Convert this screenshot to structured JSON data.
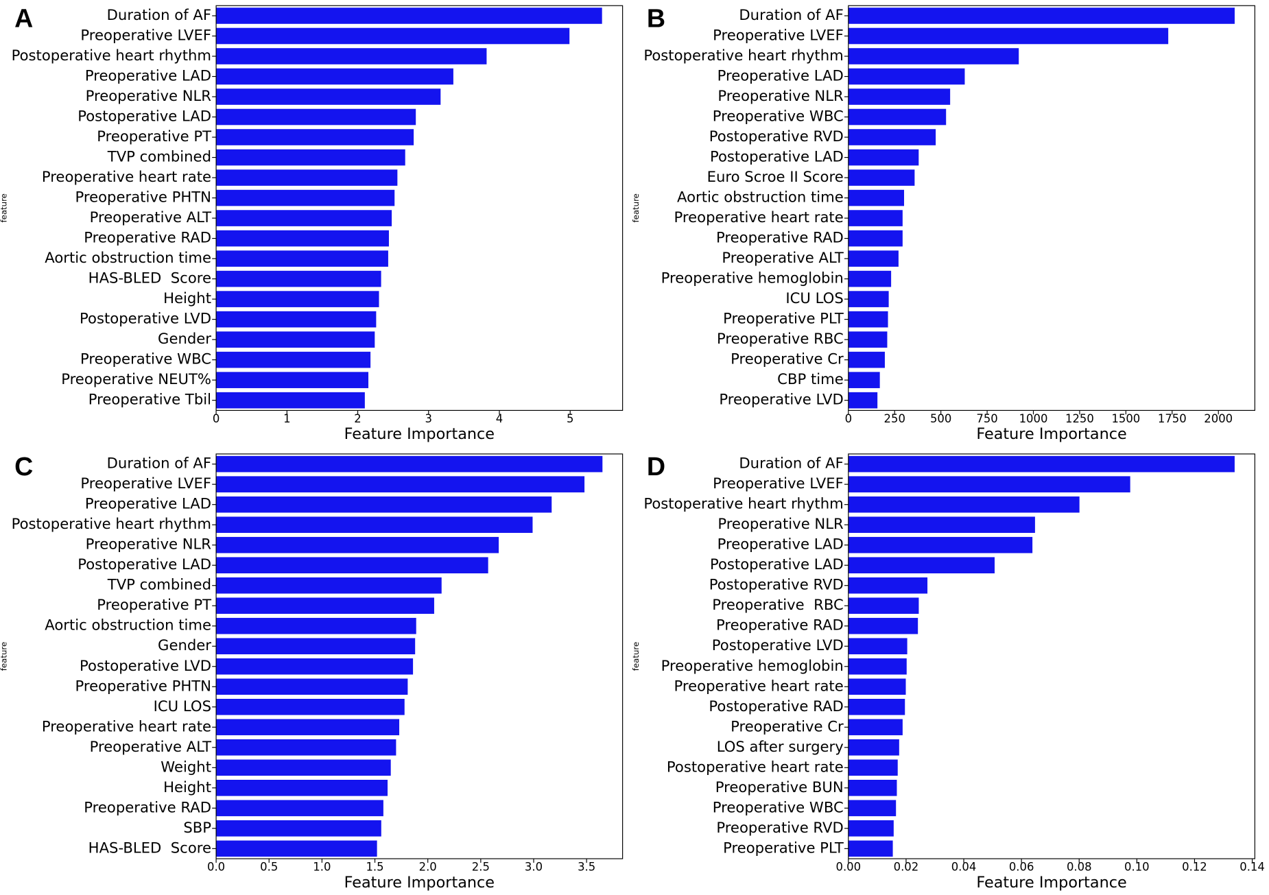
{
  "chart_data": [
    {
      "type": "bar",
      "orientation": "horizontal",
      "panel_label": "A",
      "ylabel": "feature",
      "xlabel": "Feature Importance",
      "color": "#1414ef",
      "categories": [
        "Duration of AF",
        "Preoperative LVEF",
        "Postoperative heart rhythm",
        "Preoperative LAD",
        "Preoperative NLR",
        "Postoperative LAD",
        "Preoperative PT",
        "TVP combined",
        "Preoperative heart rate",
        "Preoperative PHTN",
        "Preoperative ALT",
        "Preoperative RAD",
        "Aortic obstruction time",
        "HAS-BLED  Score",
        "Height",
        "Postoperative LVD",
        "Gender",
        "Preoperative WBC",
        "Preoperative NEUT%",
        "Preoperative Tbil"
      ],
      "values": [
        5.45,
        4.99,
        3.82,
        3.35,
        3.17,
        2.82,
        2.79,
        2.67,
        2.56,
        2.52,
        2.48,
        2.44,
        2.43,
        2.33,
        2.3,
        2.26,
        2.24,
        2.18,
        2.15,
        2.1
      ],
      "xlim": [
        0,
        5.74
      ],
      "xticks": [
        0,
        1,
        2,
        3,
        4,
        5
      ]
    },
    {
      "type": "bar",
      "orientation": "horizontal",
      "panel_label": "B",
      "ylabel": "feature",
      "xlabel": "Feature Importance",
      "color": "#1414ef",
      "categories": [
        "Duration of AF",
        "Preoperative LVEF",
        "Postoperative heart rhythm",
        "Preoperative LAD",
        "Preoperative NLR",
        "Preoperative WBC",
        "Postoperative RVD",
        "Postoperative LAD",
        "Euro Scroe II Score",
        "Aortic obstruction time",
        "Preoperative heart rate",
        "Preoperative RAD",
        "Preoperative ALT",
        "Preoperative hemoglobin",
        "ICU LOS",
        "Preoperative PLT",
        "Preoperative RBC",
        "Preoperative Cr",
        "CBP time",
        "Preoperative LVD"
      ],
      "values": [
        2088,
        1729,
        921,
        629,
        550,
        528,
        472,
        380,
        358,
        301,
        293,
        293,
        271,
        231,
        218,
        214,
        210,
        197,
        170,
        157
      ],
      "xlim": [
        0,
        2197
      ],
      "xticks": [
        0,
        250,
        500,
        750,
        1000,
        1250,
        1500,
        1750,
        2000
      ]
    },
    {
      "type": "bar",
      "orientation": "horizontal",
      "panel_label": "C",
      "ylabel": "feature",
      "xlabel": "Feature Importance",
      "color": "#1414ef",
      "categories": [
        "Duration of AF",
        "Preoperative LVEF",
        "Preoperative LAD",
        "Postoperative heart rhythm",
        "Preoperative NLR",
        "Postoperative LAD",
        "TVP combined",
        "Preoperative PT",
        "Aortic obstruction time",
        "Gender",
        "Postoperative LVD",
        "Preoperative PHTN",
        "ICU LOS",
        "Preoperative heart rate",
        "Preoperative ALT",
        "Weight",
        "Height",
        "Preoperative RAD",
        "SBP",
        "HAS-BLED  Score"
      ],
      "values": [
        3.65,
        3.48,
        3.17,
        2.99,
        2.67,
        2.57,
        2.13,
        2.06,
        1.89,
        1.88,
        1.86,
        1.81,
        1.78,
        1.73,
        1.7,
        1.65,
        1.62,
        1.58,
        1.56,
        1.52
      ],
      "xlim": [
        0,
        3.84
      ],
      "xticks": [
        {
          "value": 0,
          "label": "0.0"
        },
        0.5,
        {
          "value": 1,
          "label": "1.0"
        },
        1.5,
        {
          "value": 2,
          "label": "2.0"
        },
        2.5,
        {
          "value": 3,
          "label": "3.0"
        },
        3.5
      ]
    },
    {
      "type": "bar",
      "orientation": "horizontal",
      "panel_label": "D",
      "ylabel": "feature",
      "xlabel": "Feature Importance",
      "color": "#1414ef",
      "categories": [
        "Duration of AF",
        "Preoperative LVEF",
        "Postoperative heart rhythm",
        "Preoperative NLR",
        "Preoperative LAD",
        "Postoperative LAD",
        "Postoperative RVD",
        "Preoperative  RBC",
        "Preoperative RAD",
        "Postoperative LVD",
        "Preoperative hemoglobin",
        "Preoperative heart rate",
        "Postoperative RAD",
        "Preoperative Cr",
        "LOS after surgery",
        "Postoperative heart rate",
        "Preoperative BUN",
        "Preoperative WBC",
        "Preoperative RVD",
        "Preoperative PLT"
      ],
      "values": [
        0.1339,
        0.0977,
        0.0801,
        0.0647,
        0.0638,
        0.0507,
        0.0274,
        0.0244,
        0.0241,
        0.0204,
        0.0202,
        0.0199,
        0.0196,
        0.0188,
        0.0176,
        0.0171,
        0.0168,
        0.0165,
        0.0157,
        0.0154
      ],
      "xlim": [
        0,
        0.1409
      ],
      "xticks": [
        {
          "value": 0,
          "label": "0.00"
        },
        {
          "value": 0.02,
          "label": "0.02"
        },
        {
          "value": 0.04,
          "label": "0.04"
        },
        {
          "value": 0.06,
          "label": "0.06"
        },
        {
          "value": 0.08,
          "label": "0.08"
        },
        {
          "value": 0.1,
          "label": "0.10"
        },
        {
          "value": 0.12,
          "label": "0.12"
        },
        {
          "value": 0.14,
          "label": "0.14"
        }
      ]
    }
  ]
}
